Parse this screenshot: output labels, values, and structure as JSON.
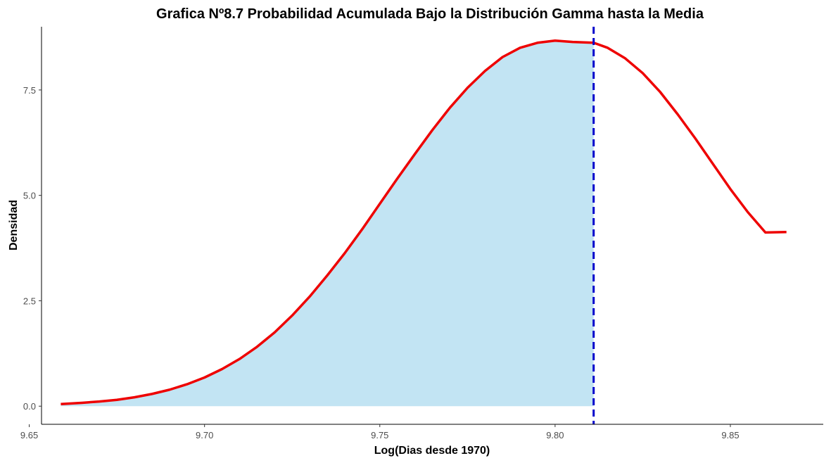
{
  "chart_data": {
    "type": "area",
    "title": "Grafica Nº8.7 Probabilidad Acumulada Bajo la Distribución Gamma hasta la Media",
    "xlabel": "Log(Dias desde 1970)",
    "ylabel": "Densidad",
    "xlim": [
      9.6535,
      9.8765
    ],
    "ylim": [
      -0.43,
      9.0
    ],
    "x_ticks": [
      9.65,
      9.7,
      9.75,
      9.8,
      9.85
    ],
    "x_tick_labels": [
      "9.65",
      "9.70",
      "9.75",
      "9.80",
      "9.85"
    ],
    "y_ticks": [
      0.0,
      2.5,
      5.0,
      7.5
    ],
    "y_tick_labels": [
      "0.0",
      "2.5",
      "5.0",
      "7.5"
    ],
    "grid": false,
    "mean_line": {
      "x": 9.811,
      "color": "#0000CC",
      "style": "dashed"
    },
    "curve_color": "#EE0000",
    "fill_color": "#C2E4F3",
    "fill_until": 9.811,
    "series": [
      {
        "x": [
          9.659,
          9.665,
          9.67,
          9.675,
          9.68,
          9.685,
          9.69,
          9.695,
          9.7,
          9.705,
          9.71,
          9.715,
          9.72,
          9.725,
          9.73,
          9.735,
          9.74,
          9.745,
          9.75,
          9.755,
          9.76,
          9.765,
          9.77,
          9.775,
          9.78,
          9.785,
          9.79,
          9.795,
          9.8,
          9.805,
          9.811,
          9.815,
          9.82,
          9.825,
          9.83,
          9.835,
          9.84,
          9.845,
          9.85,
          9.855,
          9.86,
          9.866
        ],
        "y": [
          0.05,
          0.08,
          0.11,
          0.15,
          0.21,
          0.29,
          0.39,
          0.52,
          0.68,
          0.88,
          1.12,
          1.41,
          1.75,
          2.15,
          2.6,
          3.1,
          3.63,
          4.2,
          4.8,
          5.4,
          5.98,
          6.55,
          7.08,
          7.55,
          7.95,
          8.28,
          8.5,
          8.62,
          8.67,
          8.64,
          8.62,
          8.5,
          8.25,
          7.9,
          7.45,
          6.92,
          6.35,
          5.75,
          5.15,
          4.6,
          4.12,
          4.13
        ]
      }
    ]
  }
}
